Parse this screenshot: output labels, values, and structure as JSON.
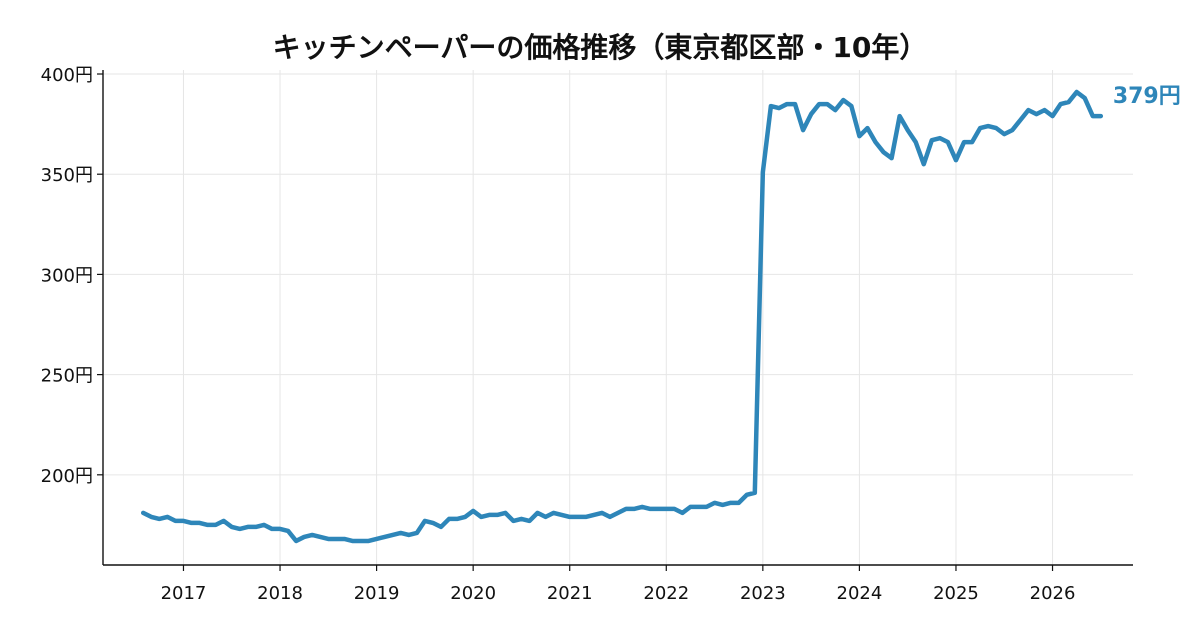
{
  "chart_data": {
    "type": "line",
    "title": "キッチンペーパーの価格推移（東京都区部・10年）",
    "xlabel": "",
    "ylabel": "",
    "xlim": [
      "2016-03",
      "2026-11"
    ],
    "ylim": [
      155,
      402
    ],
    "grid": true,
    "color": "#2e86b9",
    "x_ticks": [
      "2017",
      "2018",
      "2019",
      "2020",
      "2021",
      "2022",
      "2023",
      "2024",
      "2025",
      "2026"
    ],
    "y_ticks": [
      {
        "value": 200,
        "label": "200円"
      },
      {
        "value": 250,
        "label": "250円"
      },
      {
        "value": 300,
        "label": "300円"
      },
      {
        "value": 350,
        "label": "350円"
      },
      {
        "value": 400,
        "label": "400円"
      }
    ],
    "end_label": "379円",
    "series": [
      {
        "x": [
          "2016-08",
          "2016-09",
          "2016-10",
          "2016-11",
          "2016-12",
          "2017-01",
          "2017-02",
          "2017-03",
          "2017-04",
          "2017-05",
          "2017-06",
          "2017-07",
          "2017-08",
          "2017-09",
          "2017-10",
          "2017-11",
          "2017-12",
          "2018-01",
          "2018-02",
          "2018-03",
          "2018-04",
          "2018-05",
          "2018-06",
          "2018-07",
          "2018-08",
          "2018-09",
          "2018-10",
          "2018-11",
          "2018-12",
          "2019-01",
          "2019-02",
          "2019-03",
          "2019-04",
          "2019-05",
          "2019-06",
          "2019-07",
          "2019-08",
          "2019-09",
          "2019-10",
          "2019-11",
          "2019-12",
          "2020-01",
          "2020-02",
          "2020-03",
          "2020-04",
          "2020-05",
          "2020-06",
          "2020-07",
          "2020-08",
          "2020-09",
          "2020-10",
          "2020-11",
          "2020-12",
          "2021-01",
          "2021-02",
          "2021-03",
          "2021-04",
          "2021-05",
          "2021-06",
          "2021-07",
          "2021-08",
          "2021-09",
          "2021-10",
          "2021-11",
          "2021-12",
          "2022-01",
          "2022-02",
          "2022-03",
          "2022-04",
          "2022-05",
          "2022-06",
          "2022-07",
          "2022-08",
          "2022-09",
          "2022-10",
          "2022-11",
          "2022-12",
          "2023-01",
          "2023-02",
          "2023-03",
          "2023-04",
          "2023-05",
          "2023-06",
          "2023-07",
          "2023-08",
          "2023-09",
          "2023-10",
          "2023-11",
          "2023-12",
          "2024-01",
          "2024-02",
          "2024-03",
          "2024-04",
          "2024-05",
          "2024-06",
          "2024-07",
          "2024-08",
          "2024-09",
          "2024-10",
          "2024-11",
          "2024-12",
          "2025-01",
          "2025-02",
          "2025-03",
          "2025-04",
          "2025-05",
          "2025-06",
          "2025-07",
          "2025-08",
          "2025-09",
          "2025-10",
          "2025-11",
          "2025-12",
          "2026-01",
          "2026-02",
          "2026-03",
          "2026-04",
          "2026-05",
          "2026-06",
          "2026-07"
        ],
        "values": [
          181,
          179,
          178,
          179,
          177,
          177,
          176,
          176,
          175,
          175,
          177,
          174,
          173,
          174,
          174,
          175,
          173,
          173,
          172,
          167,
          169,
          170,
          169,
          168,
          168,
          168,
          167,
          167,
          167,
          168,
          169,
          170,
          171,
          170,
          171,
          177,
          176,
          174,
          178,
          178,
          179,
          182,
          179,
          180,
          180,
          181,
          177,
          178,
          177,
          181,
          179,
          181,
          180,
          179,
          179,
          179,
          180,
          181,
          179,
          181,
          183,
          183,
          184,
          183,
          183,
          183,
          183,
          181,
          184,
          184,
          184,
          186,
          185,
          186,
          186,
          190,
          191,
          351,
          384,
          383,
          385,
          385,
          372,
          380,
          385,
          385,
          382,
          387,
          384,
          369,
          373,
          366,
          361,
          358,
          379,
          372,
          366,
          355,
          367,
          368,
          366,
          357,
          366,
          366,
          373,
          374,
          373,
          370,
          372,
          377,
          382,
          380,
          382,
          379,
          385,
          386,
          391,
          388,
          379,
          379
        ]
      }
    ]
  }
}
